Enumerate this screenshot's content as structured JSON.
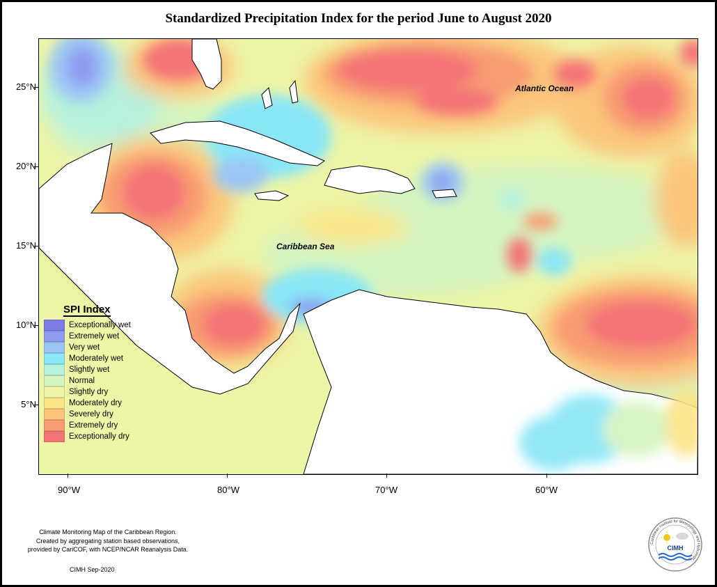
{
  "title": "Standardized Precipitation Index for the period June to August 2020",
  "map": {
    "lat_labels": [
      "25°N",
      "20°N",
      "15°N",
      "10°N",
      "5°N"
    ],
    "lon_labels": [
      "90°W",
      "80°W",
      "70°W",
      "60°W"
    ],
    "oceans": {
      "atlantic": "Atlantic Ocean",
      "caribbean": "Caribbean Sea"
    }
  },
  "legend": {
    "title": "SPI Index",
    "items": [
      {
        "label": "Exceptionally wet",
        "color": "#7b7be8"
      },
      {
        "label": "Extremely wet",
        "color": "#8e9bf0"
      },
      {
        "label": "Very wet",
        "color": "#9bc6f4"
      },
      {
        "label": "Moderately wet",
        "color": "#88e6f6"
      },
      {
        "label": "Slightly wet",
        "color": "#b6f1dc"
      },
      {
        "label": "Normal",
        "color": "#d4f4c0"
      },
      {
        "label": "Slightly dry",
        "color": "#eef5a6"
      },
      {
        "label": "Moderately dry",
        "color": "#fae486"
      },
      {
        "label": "Severely dry",
        "color": "#fbc47a"
      },
      {
        "label": "Extremely dry",
        "color": "#f89c72"
      },
      {
        "label": "Exceptionally dry",
        "color": "#f47476"
      }
    ]
  },
  "credits": {
    "line1": "Climate Monitoring Map of the Caribbean Region.",
    "line2": "Created by aggregating station based observations,",
    "line3": "provided by CariCOF, with NCEP/NCAR Reanalysis Data.",
    "date": "CIMH Sep-2020"
  },
  "logo": {
    "text": "CIMH",
    "ring_text": "Caribbean Institute for Meteorology and Hydrology"
  }
}
